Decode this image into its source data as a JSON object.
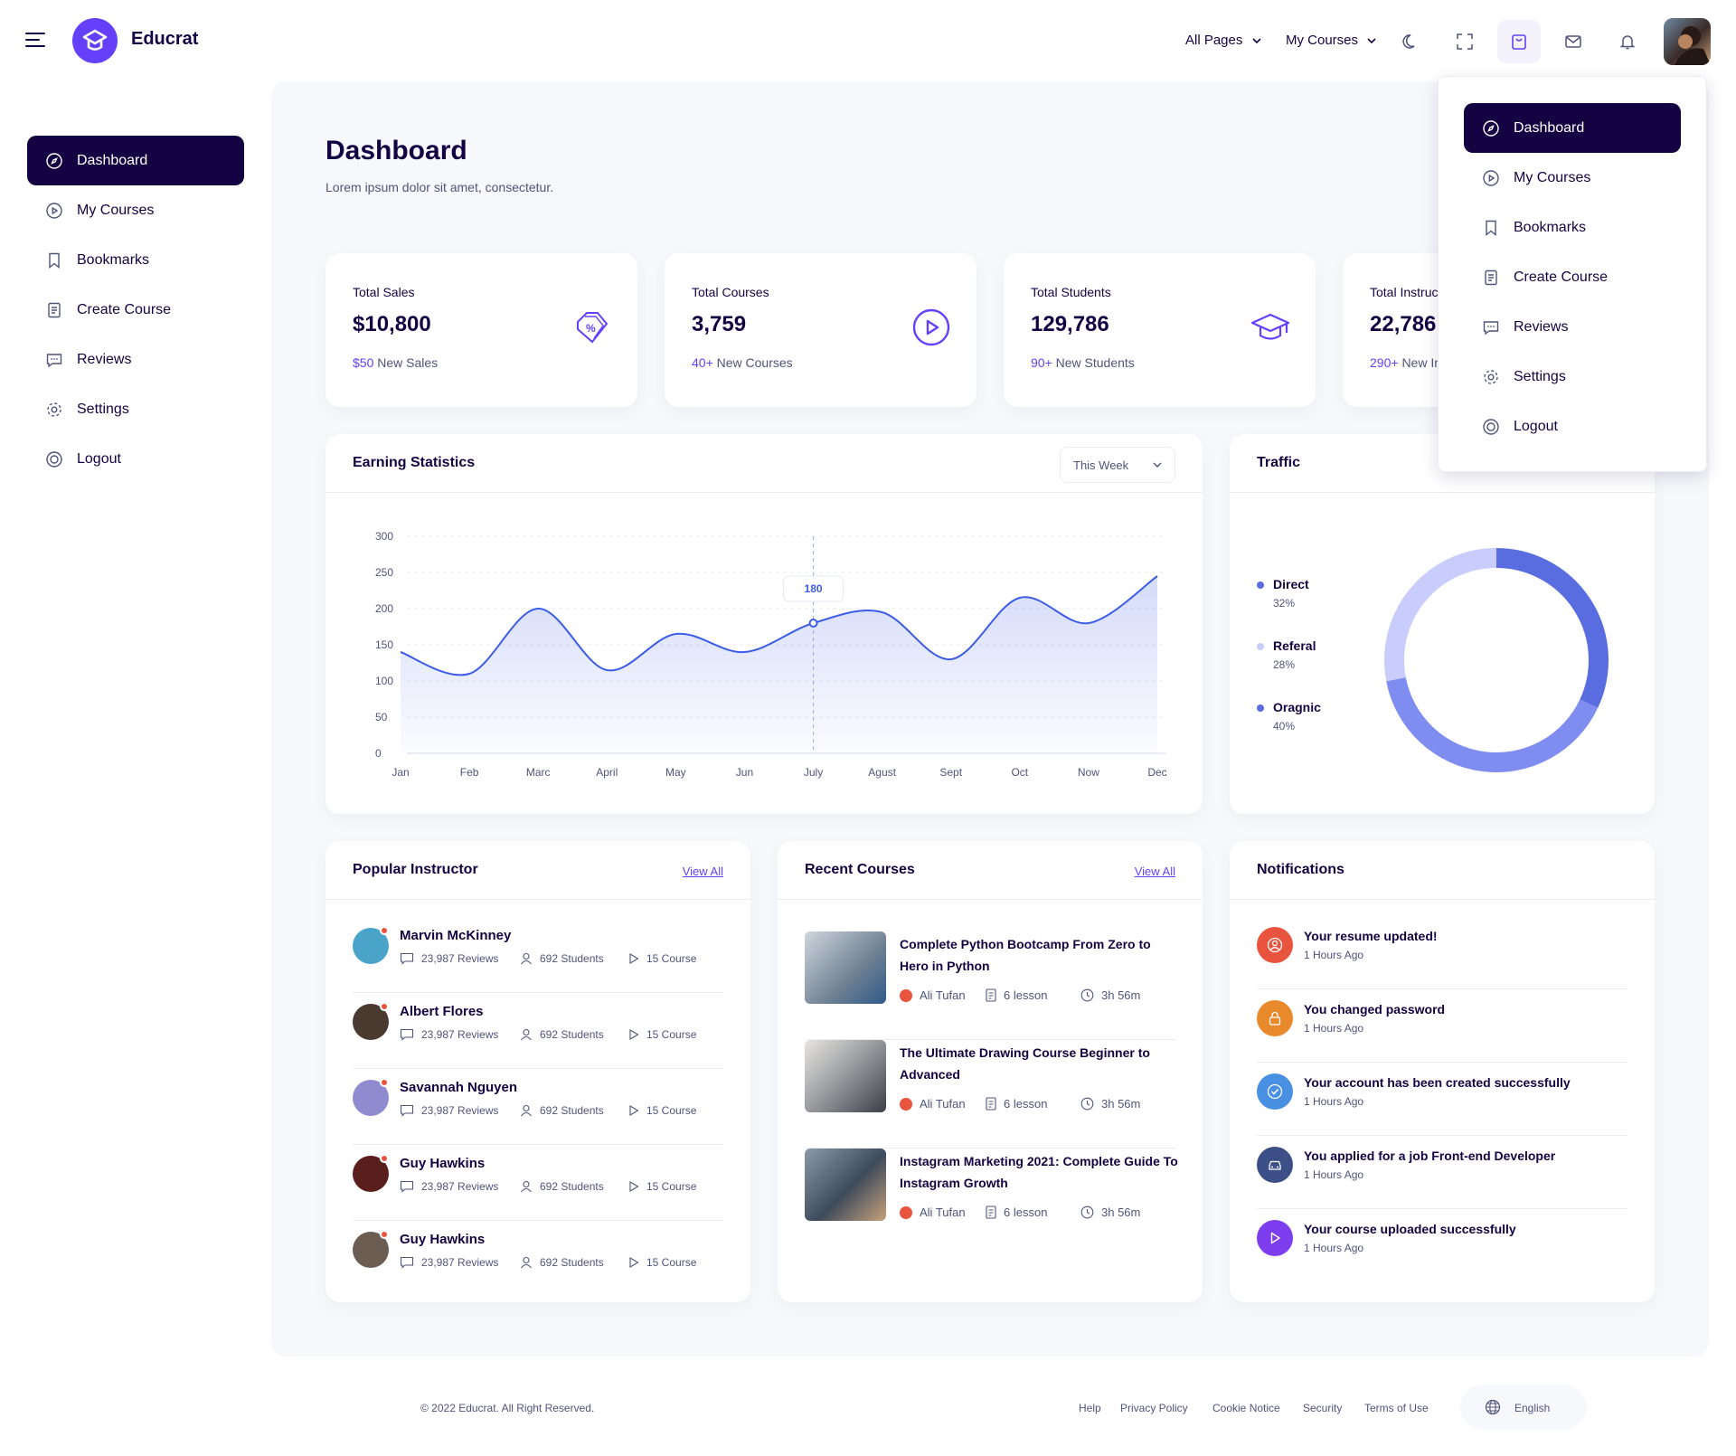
{
  "brand": {
    "name": "Educrat"
  },
  "topnav": {
    "all_pages": "All Pages",
    "my_courses": "My Courses"
  },
  "sidebar": {
    "items": [
      {
        "label": "Dashboard",
        "icon": "compass-icon",
        "active": true
      },
      {
        "label": "My Courses",
        "icon": "play-circle-icon"
      },
      {
        "label": "Bookmarks",
        "icon": "bookmark-icon"
      },
      {
        "label": "Create Course",
        "icon": "clipboard-icon"
      },
      {
        "label": "Reviews",
        "icon": "chat-icon"
      },
      {
        "label": "Settings",
        "icon": "gear-icon"
      },
      {
        "label": "Logout",
        "icon": "power-icon"
      }
    ]
  },
  "page": {
    "title": "Dashboard",
    "subtitle": "Lorem ipsum dolor sit amet, consectetur."
  },
  "stats": [
    {
      "label": "Total Sales",
      "value": "$10,800",
      "highlight": "$50",
      "foot": "New Sales",
      "icon": "sale-tag-icon"
    },
    {
      "label": "Total Courses",
      "value": "3,759",
      "highlight": "40+",
      "foot": "New Courses",
      "icon": "play-circle-icon"
    },
    {
      "label": "Total Students",
      "value": "129,786",
      "highlight": "90+",
      "foot": "New Students",
      "icon": "graduation-cap-icon"
    },
    {
      "label": "Total Instructors",
      "value": "22,786",
      "highlight": "290+",
      "foot": "New Instructors",
      "icon": "user-icon"
    }
  ],
  "earning": {
    "title": "Earning Statistics",
    "select": "This Week",
    "tooltip": "180"
  },
  "chart_data": {
    "type": "area",
    "categories": [
      "Jan",
      "Feb",
      "Marc",
      "April",
      "May",
      "Jun",
      "July",
      "Agust",
      "Sept",
      "Oct",
      "Now",
      "Dec"
    ],
    "series": [
      {
        "values": [
          140,
          110,
          200,
          115,
          165,
          140,
          180,
          195,
          130,
          215,
          180,
          245
        ]
      }
    ],
    "yticks": [
      "0",
      "50",
      "100",
      "150",
      "200",
      "250",
      "300"
    ],
    "ylim": [
      0,
      300
    ],
    "grid": true,
    "highlight": {
      "category": "July",
      "value": 180
    },
    "color": "#3d5ce7"
  },
  "traffic": {
    "title": "Traffic",
    "legend": [
      {
        "name": "Direct",
        "pct": "32%",
        "value": 32,
        "color": "#5a6de0"
      },
      {
        "name": "Referal",
        "pct": "28%",
        "value": 28,
        "color": "#c9cdfb"
      },
      {
        "name": "Oragnic",
        "pct": "40%",
        "value": 40,
        "color": "#7f8cf0"
      }
    ]
  },
  "instructors": {
    "title": "Popular Instructor",
    "view_all": "View All",
    "items": [
      {
        "name": "Marvin McKinney",
        "reviews": "23,987 Reviews",
        "students": "692 Students",
        "courses": "15 Course",
        "avatar_color": "#4aa3c9"
      },
      {
        "name": "Albert Flores",
        "reviews": "23,987 Reviews",
        "students": "692 Students",
        "courses": "15 Course",
        "avatar_color": "#4a3a30"
      },
      {
        "name": "Savannah Nguyen",
        "reviews": "23,987 Reviews",
        "students": "692 Students",
        "courses": "15 Course",
        "avatar_color": "#8f8bd0"
      },
      {
        "name": "Guy Hawkins",
        "reviews": "23,987 Reviews",
        "students": "692 Students",
        "courses": "15 Course",
        "avatar_color": "#5a1f1c"
      },
      {
        "name": "Guy Hawkins",
        "reviews": "23,987 Reviews",
        "students": "692 Students",
        "courses": "15 Course",
        "avatar_color": "#6b5d52"
      }
    ]
  },
  "courses": {
    "title": "Recent Courses",
    "view_all": "View All",
    "items": [
      {
        "title": "Complete Python Bootcamp From Zero to Hero in Python",
        "author": "Ali Tufan",
        "lessons": "6 lesson",
        "duration": "3h 56m",
        "thumb_color": "#6f8193"
      },
      {
        "title": "The Ultimate Drawing Course Beginner to Advanced",
        "author": "Ali Tufan",
        "lessons": "6 lesson",
        "duration": "3h 56m",
        "thumb_color": "#8c8f94"
      },
      {
        "title": "Instagram Marketing 2021: Complete Guide To Instagram Growth",
        "author": "Ali Tufan",
        "lessons": "6 lesson",
        "duration": "3h 56m",
        "thumb_color": "#3e4b5c"
      }
    ]
  },
  "notifications": {
    "title": "Notifications",
    "items": [
      {
        "title": "Your resume updated!",
        "time": "1 Hours Ago",
        "color": "#e8543e",
        "icon": "user-circle-icon"
      },
      {
        "title": "You changed password",
        "time": "1 Hours Ago",
        "color": "#e8892b",
        "icon": "lock-icon"
      },
      {
        "title": "Your account has been created successfully",
        "time": "1 Hours Ago",
        "color": "#4a90e2",
        "icon": "check-badge-icon"
      },
      {
        "title": "You applied for a job Front-end Developer",
        "time": "1 Hours Ago",
        "color": "#3c4f86",
        "icon": "car-icon"
      },
      {
        "title": "Your course uploaded successfully",
        "time": "1 Hours Ago",
        "color": "#7d3ef0",
        "icon": "play-icon"
      }
    ]
  },
  "footer": {
    "copyright": "© 2022 Educrat. All Right Reserved.",
    "links": [
      "Help",
      "Privacy Policy",
      "Cookie Notice",
      "Security",
      "Terms of Use"
    ],
    "language": "English"
  },
  "dropdown": {
    "items": [
      {
        "label": "Dashboard",
        "active": true
      },
      {
        "label": "My Courses"
      },
      {
        "label": "Bookmarks"
      },
      {
        "label": "Create Course"
      },
      {
        "label": "Reviews"
      },
      {
        "label": "Settings"
      },
      {
        "label": "Logout"
      }
    ]
  }
}
